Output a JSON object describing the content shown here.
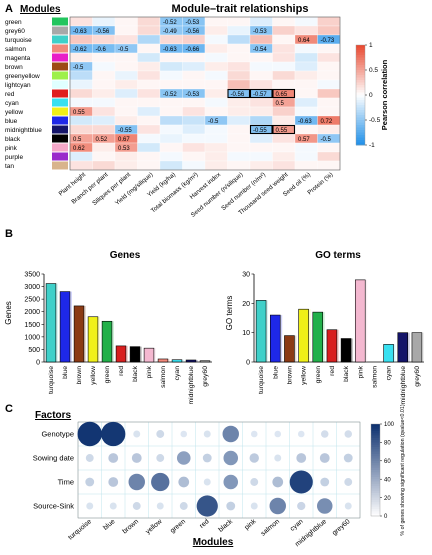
{
  "panels": {
    "a": "A",
    "b": "B",
    "c": "C"
  },
  "chart_data": [
    {
      "type": "heatmap",
      "title": "Module–trait relationships",
      "ylabel": "Modules",
      "colorbar_label": "Pearson correlation",
      "colorbar_ticks": [
        "1",
        "0.5",
        "0",
        "-0.5",
        "-1"
      ],
      "colorbar_range": [
        -1,
        1
      ],
      "colors": {
        "positive": "#e8472e",
        "zero": "#ffffff",
        "negative": "#1e8fe8"
      },
      "modules": [
        "green",
        "grey60",
        "turquoise",
        "salmon",
        "magenta",
        "brown",
        "greenyellow",
        "lightcyan",
        "red",
        "cyan",
        "yellow",
        "blue",
        "midnightblue",
        "black",
        "pink",
        "purple",
        "tan"
      ],
      "module_colors": [
        "#22c55e",
        "#a8a8a8",
        "#3fd0c9",
        "#f2887a",
        "#e81ec8",
        "#9c4a15",
        "#9ef04a",
        "#e0ffff",
        "#e01e1e",
        "#38e0f0",
        "#f0f018",
        "#1e28e8",
        "#141469",
        "#000000",
        "#f4a8c8",
        "#9a2acb",
        "#d8b48c"
      ],
      "traits": [
        "Plant height",
        "Branch per plant",
        "Siliques per plant",
        "Yield (mg/silique)",
        "Yield (kg/ha)",
        "Total biomass (kg/m²)",
        "Harvest index",
        "Seed number (n/silique)",
        "Seed number (n/m²)",
        "Thousand seed weight",
        "Seed oil (%)",
        "Protein (%)"
      ],
      "values": [
        [
          0.15,
          -0.1,
          0.05,
          0.2,
          -0.52,
          -0.53,
          0.05,
          0.05,
          -0.15,
          0.05,
          -0.05,
          0.25
        ],
        [
          -0.63,
          -0.56,
          0.05,
          0.2,
          -0.49,
          -0.56,
          0.1,
          -0.1,
          -0.53,
          0.25,
          0.15,
          0.3
        ],
        [
          0.3,
          0.2,
          0.15,
          -0.35,
          0.2,
          0.25,
          -0.05,
          -0.3,
          0.35,
          0.05,
          0.64,
          -0.73
        ],
        [
          -0.62,
          -0.6,
          -0.5,
          0.05,
          -0.63,
          -0.66,
          0.1,
          0.05,
          -0.54,
          0.15,
          -0.05,
          0.05
        ],
        [
          0.1,
          0.05,
          0.05,
          -0.2,
          0.05,
          0.05,
          -0.05,
          0.05,
          0.05,
          0.15,
          -0.2,
          0.15
        ],
        [
          -0.5,
          -0.05,
          0.05,
          0.1,
          -0.2,
          -0.15,
          0.1,
          0.15,
          -0.05,
          -0.05,
          -0.15,
          0.05
        ],
        [
          -0.3,
          0.05,
          -0.1,
          0.15,
          -0.05,
          0.05,
          -0.05,
          0.2,
          0.05,
          0.2,
          0.1,
          0.05
        ],
        [
          -0.1,
          0.05,
          0.1,
          0.05,
          0.05,
          0.05,
          0.05,
          0.35,
          0.15,
          0.05,
          0.05,
          -0.05
        ],
        [
          0.2,
          0.1,
          -0.15,
          0.15,
          -0.52,
          -0.53,
          0.1,
          -0.56,
          -0.57,
          0.65,
          0.05,
          0.3
        ],
        [
          -0.05,
          -0.05,
          0.05,
          0.05,
          0.05,
          0.05,
          -0.05,
          0.1,
          0.15,
          0.5,
          -0.15,
          0.05
        ],
        [
          0.55,
          0.15,
          0.05,
          -0.15,
          0.05,
          0.15,
          0.05,
          0.1,
          0.1,
          0.25,
          -0.05,
          0.05
        ],
        [
          -0.2,
          -0.15,
          0.1,
          0.05,
          -0.3,
          -0.25,
          -0.5,
          -0.15,
          -0.35,
          0.1,
          -0.63,
          0.72
        ],
        [
          0.2,
          0.2,
          -0.55,
          0.15,
          -0.05,
          -0.15,
          -0.05,
          0.05,
          -0.55,
          0.55,
          0.05,
          0.1
        ],
        [
          0.5,
          0.52,
          0.67,
          -0.05,
          -0.1,
          -0.05,
          -0.05,
          0.05,
          -0.15,
          0.15,
          0.57,
          -0.5
        ],
        [
          0.62,
          0.1,
          0.53,
          -0.2,
          0.05,
          0.15,
          0.1,
          0.05,
          0.05,
          0.05,
          -0.05,
          0.05
        ],
        [
          -0.15,
          0.05,
          0.1,
          0.05,
          -0.05,
          0.05,
          0.1,
          -0.05,
          -0.05,
          0.1,
          -0.05,
          0.2
        ],
        [
          0.15,
          0.2,
          0.1,
          0.05,
          -0.2,
          -0.05,
          0.1,
          0.05,
          0.1,
          0.15,
          0.05,
          0.05
        ]
      ],
      "labels": [
        [
          null,
          null,
          null,
          null,
          "-0.52",
          "-0.53",
          null,
          null,
          null,
          null,
          null,
          null
        ],
        [
          "-0.63",
          "-0.56",
          null,
          null,
          "-0.49",
          "-0.56",
          null,
          null,
          "-0.53",
          null,
          null,
          null
        ],
        [
          null,
          null,
          null,
          null,
          null,
          null,
          null,
          null,
          null,
          null,
          "0.64",
          "-0.73"
        ],
        [
          "-0.62",
          "-0.6",
          "-0.5",
          null,
          "-0.63",
          "-0.66",
          null,
          null,
          "-0.54",
          null,
          null,
          null
        ],
        [
          null,
          null,
          null,
          null,
          null,
          null,
          null,
          null,
          null,
          null,
          null,
          null
        ],
        [
          "-0.5",
          null,
          null,
          null,
          null,
          null,
          null,
          null,
          null,
          null,
          null,
          null
        ],
        [
          null,
          null,
          null,
          null,
          null,
          null,
          null,
          null,
          null,
          null,
          null,
          null
        ],
        [
          null,
          null,
          null,
          null,
          null,
          null,
          null,
          null,
          null,
          null,
          null,
          null
        ],
        [
          null,
          null,
          null,
          null,
          "-0.52",
          "-0.53",
          null,
          "-0.56",
          "-0.57",
          "0.65",
          null,
          null
        ],
        [
          null,
          null,
          null,
          null,
          null,
          null,
          null,
          null,
          null,
          "0.5",
          null,
          null
        ],
        [
          "0.55",
          null,
          null,
          null,
          null,
          null,
          null,
          null,
          null,
          null,
          null,
          null
        ],
        [
          null,
          null,
          null,
          null,
          null,
          null,
          "-0.5",
          null,
          null,
          null,
          "-0.63",
          "0.72"
        ],
        [
          null,
          null,
          "-0.55",
          null,
          null,
          null,
          null,
          null,
          "-0.55",
          "0.55",
          null,
          null
        ],
        [
          "0.5",
          "0.52",
          "0.67",
          null,
          null,
          null,
          null,
          null,
          null,
          null,
          "0.57",
          "-0.5"
        ],
        [
          "0.62",
          null,
          "0.53",
          null,
          null,
          null,
          null,
          null,
          null,
          null,
          null,
          null
        ],
        [
          null,
          null,
          null,
          null,
          null,
          null,
          null,
          null,
          null,
          null,
          null,
          null
        ],
        [
          null,
          null,
          null,
          null,
          null,
          null,
          null,
          null,
          null,
          null,
          null,
          null
        ]
      ],
      "boxed_cells": [
        [
          8,
          7
        ],
        [
          8,
          8
        ],
        [
          8,
          9
        ],
        [
          12,
          8
        ],
        [
          12,
          9
        ]
      ]
    },
    {
      "type": "bar",
      "title": "Genes",
      "ylabel": "Genes",
      "ylim": [
        0,
        3500
      ],
      "yticks": [
        0,
        500,
        1000,
        1500,
        2000,
        2500,
        3000,
        3500
      ],
      "categories": [
        "turquoise",
        "blue",
        "brown",
        "yellow",
        "green",
        "red",
        "black",
        "pink",
        "salmon",
        "cyan",
        "midnightblue",
        "grey60"
      ],
      "values": [
        3120,
        2800,
        2230,
        1800,
        1620,
        640,
        610,
        550,
        120,
        90,
        80,
        50
      ],
      "colors": [
        "#3fd0c9",
        "#1e28e8",
        "#8b3a14",
        "#f0f018",
        "#22b04a",
        "#d81e1e",
        "#000000",
        "#f4b8d0",
        "#f2887a",
        "#38e0f0",
        "#141469",
        "#a8a8a8"
      ]
    },
    {
      "type": "bar",
      "title": "GO terms",
      "ylabel": "GO terms",
      "ylim": [
        0,
        30
      ],
      "yticks": [
        0,
        10,
        20,
        30
      ],
      "categories": [
        "turquoise",
        "blue",
        "brown",
        "yellow",
        "green",
        "red",
        "black",
        "pink",
        "salmon",
        "cyan",
        "midnightblue",
        "grey60"
      ],
      "values": [
        21,
        16,
        9,
        18,
        17,
        11,
        8,
        28,
        0,
        6,
        10,
        10
      ],
      "colors": [
        "#3fd0c9",
        "#1e28e8",
        "#8b3a14",
        "#f0f018",
        "#22b04a",
        "#d81e1e",
        "#000000",
        "#f4b8d0",
        "#f2887a",
        "#38e0f0",
        "#141469",
        "#a8a8a8"
      ]
    },
    {
      "type": "scatter",
      "subtype": "bubble-matrix",
      "ylabel": "Factors",
      "xlabel": "Modules",
      "colorbar_label": "% of genes showing significant regulation (qvalue<0.01)",
      "colorbar_ticks": [
        "100",
        "80",
        "60",
        "40",
        "20",
        "0"
      ],
      "colorbar_range": [
        0,
        100
      ],
      "factors": [
        "Genotype",
        "Sowing date",
        "Time",
        "Source-Sink"
      ],
      "modules": [
        "turquoise",
        "blue",
        "brown",
        "yellow",
        "green",
        "red",
        "black",
        "pink",
        "salmon",
        "cyan",
        "midnightblue",
        "grey60"
      ],
      "values": [
        [
          97,
          96,
          5,
          10,
          3,
          5,
          55,
          3,
          3,
          3,
          8,
          8
        ],
        [
          10,
          20,
          20,
          10,
          40,
          15,
          45,
          18,
          5,
          20,
          20,
          15
        ],
        [
          15,
          20,
          55,
          65,
          25,
          5,
          45,
          10,
          25,
          90,
          15,
          10
        ],
        [
          5,
          5,
          10,
          5,
          10,
          80,
          15,
          5,
          55,
          12,
          50,
          5
        ]
      ]
    }
  ]
}
